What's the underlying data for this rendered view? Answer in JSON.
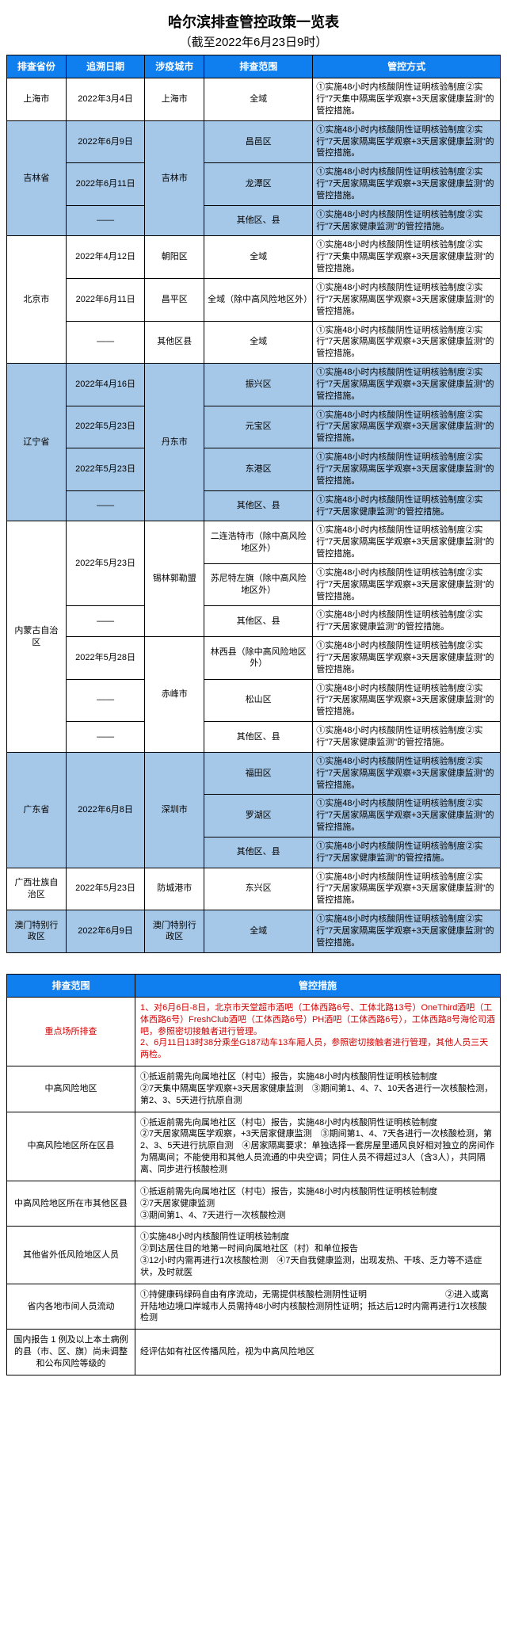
{
  "title": "哈尔滨排查管控政策一览表",
  "subtitle": "（截至2022年6月23日9时）",
  "t1": {
    "headers": [
      "排查省份",
      "追溯日期",
      "涉疫城市",
      "排查范围",
      "管控方式"
    ],
    "col_widths": [
      "12%",
      "16%",
      "12%",
      "22%",
      "38%"
    ],
    "rows": [
      {
        "band": "B",
        "prov": "上海市",
        "prov_span": 1,
        "date": "2022年3月4日",
        "city": "上海市",
        "city_span": 1,
        "scope": "全域",
        "meas": "①实施48小时内核酸阴性证明核验制度②实行\"7天集中隔离医学观察+3天居家健康监测\"的管控措施。"
      },
      {
        "band": "A",
        "prov": "吉林省",
        "prov_span": 3,
        "date": "2022年6月9日",
        "city": "吉林市",
        "city_span": 3,
        "scope": "昌邑区",
        "meas": "①实施48小时内核酸阴性证明核验制度②实行\"7天居家隔离医学观察+3天居家健康监测\"的管控措施。"
      },
      {
        "band": "A",
        "date": "2022年6月11日",
        "scope": "龙潭区",
        "meas": "①实施48小时内核酸阴性证明核验制度②实行\"7天居家隔离医学观察+3天居家健康监测\"的管控措施。"
      },
      {
        "band": "A",
        "date": "——",
        "scope": "其他区、县",
        "meas": "①实施48小时内核酸阴性证明核验制度②实行\"7天居家健康监测\"的管控措施。"
      },
      {
        "band": "B",
        "prov": "北京市",
        "prov_span": 3,
        "date": "2022年4月12日",
        "city": "朝阳区",
        "city_span": 1,
        "scope": "全域",
        "meas": "①实施48小时内核酸阴性证明核验制度②实行\"7天集中隔离医学观察+3天居家健康监测\"的管控措施。"
      },
      {
        "band": "B",
        "date": "2022年6月11日",
        "city": "昌平区",
        "city_span": 1,
        "scope": "全域（除中高风险地区外）",
        "meas": "①实施48小时内核酸阴性证明核验制度②实行\"7天居家隔离医学观察+3天居家健康监测\"的管控措施。"
      },
      {
        "band": "B",
        "date": "——",
        "city": "其他区县",
        "city_span": 1,
        "scope": "全域",
        "meas": "①实施48小时内核酸阴性证明核验制度②实行\"7天居家隔离医学观察+3天居家健康监测\"的管控措施。"
      },
      {
        "band": "A",
        "prov": "辽宁省",
        "prov_span": 4,
        "date": "2022年4月16日",
        "city": "丹东市",
        "city_span": 4,
        "scope": "振兴区",
        "meas": "①实施48小时内核酸阴性证明核验制度②实行\"7天居家隔离医学观察+3天居家健康监测\"的管控措施。"
      },
      {
        "band": "A",
        "date": "2022年5月23日",
        "scope": "元宝区",
        "meas": "①实施48小时内核酸阴性证明核验制度②实行\"7天居家隔离医学观察+3天居家健康监测\"的管控措施。"
      },
      {
        "band": "A",
        "date": "2022年5月23日",
        "scope": "东港区",
        "meas": "①实施48小时内核酸阴性证明核验制度②实行\"7天居家隔离医学观察+3天居家健康监测\"的管控措施。"
      },
      {
        "band": "A",
        "date": "——",
        "scope": "其他区、县",
        "meas": "①实施48小时内核酸阴性证明核验制度②实行\"7天居家健康监测\"的管控措施。"
      },
      {
        "band": "B",
        "prov": "内蒙古自治区",
        "prov_span": 6,
        "date": "2022年5月23日",
        "date_span": 2,
        "city": "锡林郭勒盟",
        "city_span": 3,
        "scope": "二连浩特市（除中高风险地区外）",
        "meas": "①实施48小时内核酸阴性证明核验制度②实行\"7天居家隔离医学观察+3天居家健康监测\"的管控措施。"
      },
      {
        "band": "B",
        "scope": "苏尼特左旗（除中高风险地区外）",
        "meas": "①实施48小时内核酸阴性证明核验制度②实行\"7天居家隔离医学观察+3天居家健康监测\"的管控措施。"
      },
      {
        "band": "B",
        "date": "——",
        "scope": "其他区、县",
        "meas": "①实施48小时内核酸阴性证明核验制度②实行\"7天居家健康监测\"的管控措施。"
      },
      {
        "band": "B",
        "date": "2022年5月28日",
        "city": "赤峰市",
        "city_span": 3,
        "scope": "林西县（除中高风险地区外）",
        "meas": "①实施48小时内核酸阴性证明核验制度②实行\"7天居家隔离医学观察+3天居家健康监测\"的管控措施。"
      },
      {
        "band": "B",
        "date": "——",
        "scope": "松山区",
        "meas": "①实施48小时内核酸阴性证明核验制度②实行\"7天居家隔离医学观察+3天居家健康监测\"的管控措施。"
      },
      {
        "band": "B",
        "date": "——",
        "scope": "其他区、县",
        "meas": "①实施48小时内核酸阴性证明核验制度②实行\"7天居家健康监测\"的管控措施。"
      },
      {
        "band": "A",
        "prov": "广东省",
        "prov_span": 3,
        "date": "2022年6月8日",
        "date_span": 3,
        "city": "深圳市",
        "city_span": 3,
        "scope": "福田区",
        "meas": "①实施48小时内核酸阴性证明核验制度②实行\"7天居家隔离医学观察+3天居家健康监测\"的管控措施。"
      },
      {
        "band": "A",
        "scope": "罗湖区",
        "meas": "①实施48小时内核酸阴性证明核验制度②实行\"7天居家隔离医学观察+3天居家健康监测\"的管控措施。"
      },
      {
        "band": "A",
        "scope": "其他区、县",
        "meas": "①实施48小时内核酸阴性证明核验制度②实行\"7天居家健康监测\"的管控措施。"
      },
      {
        "band": "B",
        "prov": "广西壮族自治区",
        "prov_span": 1,
        "date": "2022年5月23日",
        "city": "防城港市",
        "city_span": 1,
        "scope": "东兴区",
        "meas": "①实施48小时内核酸阴性证明核验制度②实行\"7天居家隔离医学观察+3天居家健康监测\"的管控措施。"
      },
      {
        "band": "A",
        "prov": "澳门特别行政区",
        "prov_span": 1,
        "date": "2022年6月9日",
        "city": "澳门特别行政区",
        "city_span": 1,
        "scope": "全域",
        "meas": "①实施48小时内核酸阴性证明核验制度②实行\"7天居家隔离医学观察+3天居家健康监测\"的管控措施。"
      }
    ]
  },
  "t2": {
    "headers": [
      "排查范围",
      "管控措施"
    ],
    "col_widths": [
      "26%",
      "74%"
    ],
    "rows": [
      {
        "scope": "重点场所排查",
        "scope_red": true,
        "meas": "1、对6月6日-8日，北京市天堂超市酒吧（工体西路6号、工体北路13号）OneThird酒吧（工体西路6号）FreshClub酒吧（工体西路6号）PH酒吧（工体西路6号），工体西路8号海伦司酒吧，参照密切接触者进行管理。\n2、6月11日13时38分乘坐G187动车13车厢人员，参照密切接触者进行管理，其他人员三天两检。",
        "meas_red": true
      },
      {
        "scope": "中高风险地区",
        "meas": "①抵返前需先向属地社区（村屯）报告，实施48小时内核酸阴性证明核验制度\n②7天集中隔离医学观察+3天居家健康监测　③期间第1、4、7、10天各进行一次核酸检测，第2、3、5天进行抗原自测"
      },
      {
        "scope": "中高风险地区所在区县",
        "meas": "①抵返前需先向属地社区（村屯）报告，实施48小时内核酸阴性证明核验制度\n②7天居家隔离医学观察，+3天居家健康监测　③期间第1、4、7天各进行一次核酸检测，第2、3、5天进行抗原自测　④居家隔离要求：单独选择一套房屋里通风良好相对独立的房间作为隔离间；不能使用和其他人员流通的中央空调；同住人员不得超过3人（含3人），共同隔离、同步进行核酸检测"
      },
      {
        "scope": "中高风险地区所在市其他区县",
        "meas": "①抵返前需先向属地社区（村屯）报告，实施48小时内核酸阴性证明核验制度\n②7天居家健康监测\n③期间第1、4、7天进行一次核酸检测"
      },
      {
        "scope": "其他省外低风险地区人员",
        "meas": "①实施48小时内核酸阴性证明核验制度\n②到达居住目的地第一时间向属地社区（村）和单位报告\n③12小时内需再进行1次核酸检测　④7天自我健康监测，出现发热、干咳、乏力等不适症状，及时就医"
      },
      {
        "scope": "省内各地市间人员流动",
        "meas": "①持健康码绿码自由有序流动，无需提供核酸检测阴性证明　　　　　　　　　②进入或离开陆地边境口岸城市人员需持48小时内核酸检测阴性证明；抵达后12时内需再进行1次核酸检测"
      }
    ],
    "footer_scope": "国内报告 1 例及以上本土病例的县（市、区、旗）尚未调整和公布风险等级的",
    "footer_meas": "经评估如有社区传播风险，视为中高风险地区"
  }
}
